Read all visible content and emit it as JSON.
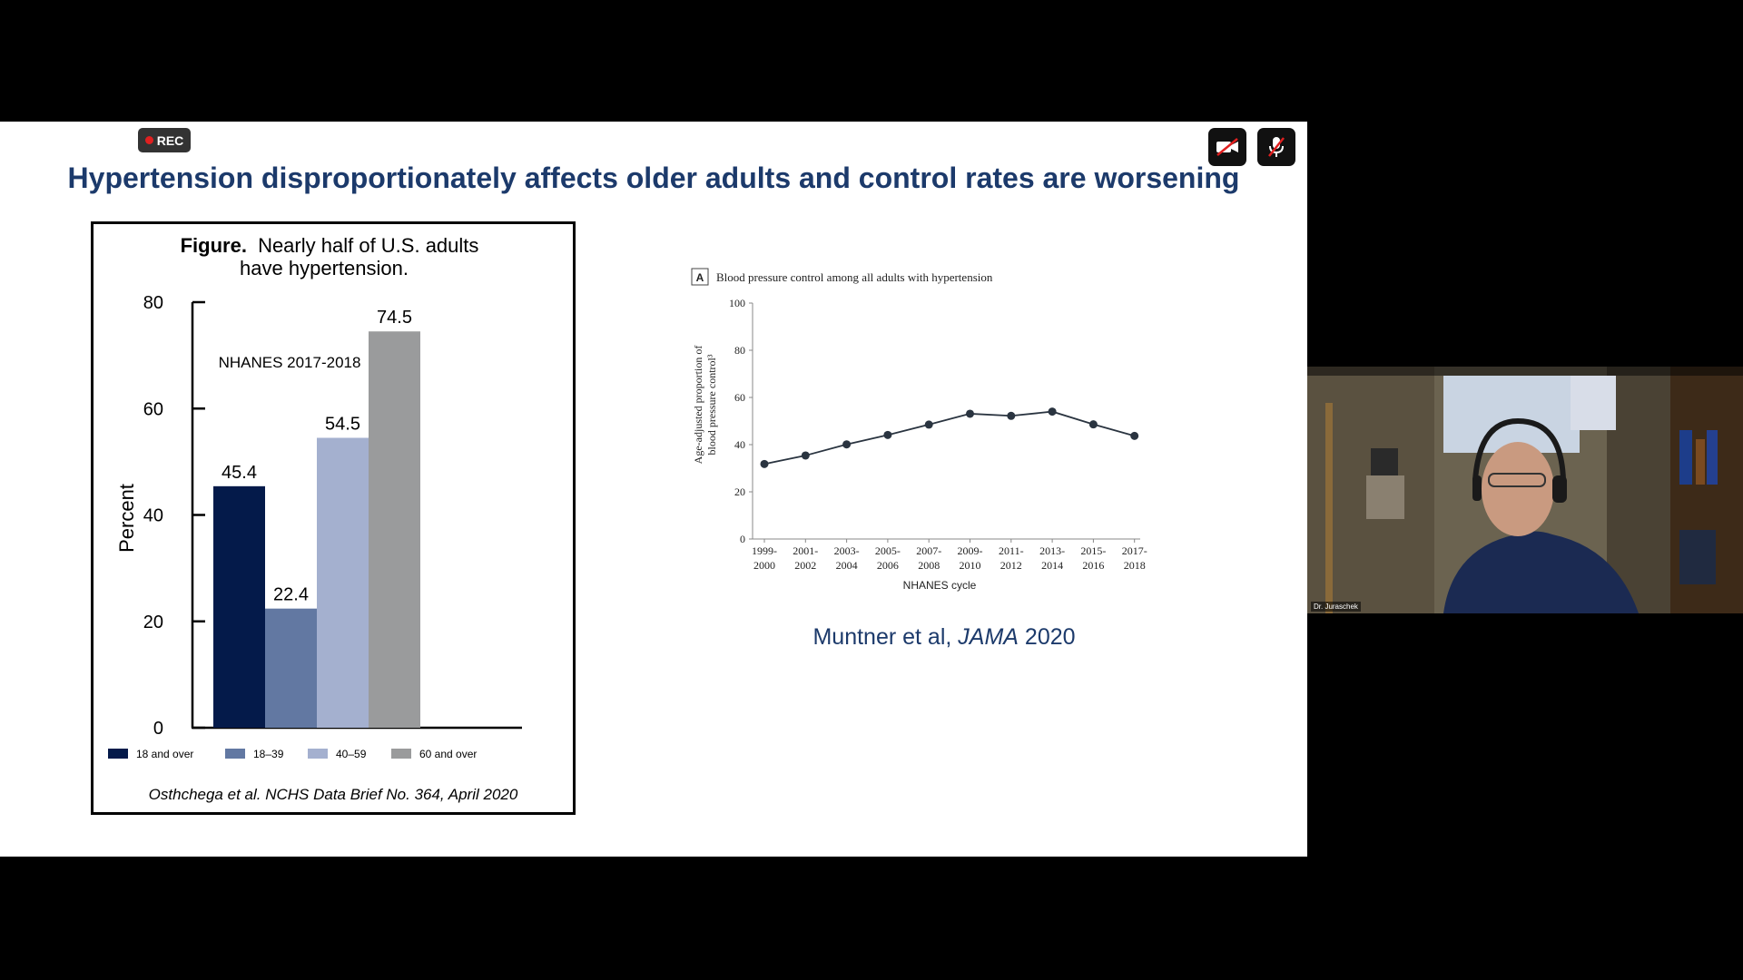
{
  "meeting": {
    "rec_label": "REC",
    "camera_icon": "camera-off-icon",
    "mic_icon": "mic-off-icon"
  },
  "slide": {
    "title": "Hypertension disproportionately affects older adults and control rates are worsening",
    "left_figure": {
      "title_bold": "Figure.",
      "title_rest_line1": "Nearly half of U.S. adults",
      "title_line2": "have hypertension.",
      "source": "Osthchega et al. NCHS Data Brief No. 364, April 2020"
    },
    "right_figure": {
      "citation_prefix": "Muntner et al, ",
      "citation_journal": "JAMA",
      "citation_year": " 2020"
    }
  },
  "chart_data": [
    {
      "type": "bar",
      "annotation": "NHANES 2017-2018",
      "ylabel": "Percent",
      "ylim": [
        0,
        80
      ],
      "yticks": [
        "0",
        "20",
        "40",
        "60",
        "80"
      ],
      "categories": [
        "18 and over",
        "18–39",
        "40–59",
        "60 and over"
      ],
      "values": [
        45.4,
        22.4,
        54.5,
        74.5
      ],
      "value_labels": [
        "45.4",
        "22.4",
        "54.5",
        "74.5"
      ],
      "colors": [
        "#041a4a",
        "#6278a2",
        "#a4b0cf",
        "#9a9b9c"
      ],
      "legend_position": "bottom"
    },
    {
      "type": "line",
      "panel_label": "A",
      "title": "Blood pressure control among all adults with hypertension",
      "ylabel_line1": "Age-adjusted proportion of",
      "ylabel_line2": "blood pressure control³",
      "xlabel": "NHANES cycle",
      "ylim": [
        0,
        100
      ],
      "yticks": [
        "0",
        "20",
        "40",
        "60",
        "80",
        "100"
      ],
      "x_top": [
        "1999-",
        "2001-",
        "2003-",
        "2005-",
        "2007-",
        "2009-",
        "2011-",
        "2013-",
        "2015-",
        "2017-"
      ],
      "x_bottom": [
        "2000",
        "2002",
        "2004",
        "2006",
        "2008",
        "2010",
        "2012",
        "2014",
        "2016",
        "2018"
      ],
      "values": [
        31.8,
        35.4,
        40.1,
        44.1,
        48.5,
        53.1,
        52.2,
        54.0,
        48.6,
        43.7
      ],
      "line_color": "#2a3440"
    }
  ],
  "participant": {
    "name": "Dr. Juraschek"
  }
}
